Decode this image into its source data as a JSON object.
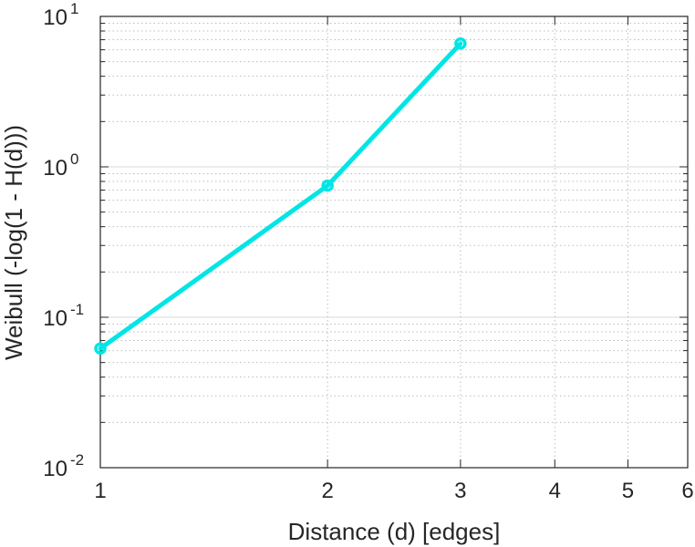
{
  "chart_data": {
    "type": "line",
    "xlabel": "Distance (d) [edges]",
    "ylabel": "Weibull (-log(1 - H(d)))",
    "x_scale": "log",
    "y_scale": "log",
    "xlim": [
      1,
      6
    ],
    "ylim": [
      0.01,
      10
    ],
    "grid": true,
    "x_ticks": [
      {
        "value": 1,
        "label": "1"
      },
      {
        "value": 2,
        "label": "2"
      },
      {
        "value": 3,
        "label": "3"
      },
      {
        "value": 4,
        "label": "4"
      },
      {
        "value": 5,
        "label": "5"
      },
      {
        "value": 6,
        "label": "6"
      }
    ],
    "y_ticks": [
      {
        "value": 0.01,
        "base": "10",
        "exp": "-2"
      },
      {
        "value": 0.1,
        "base": "10",
        "exp": "-1"
      },
      {
        "value": 1,
        "base": "10",
        "exp": "0"
      },
      {
        "value": 10,
        "base": "10",
        "exp": "1"
      }
    ],
    "series": [
      {
        "color": "#00e5e5",
        "marker": "circle",
        "x": [
          1,
          2,
          3
        ],
        "y": [
          0.062,
          0.75,
          6.6
        ]
      }
    ]
  }
}
